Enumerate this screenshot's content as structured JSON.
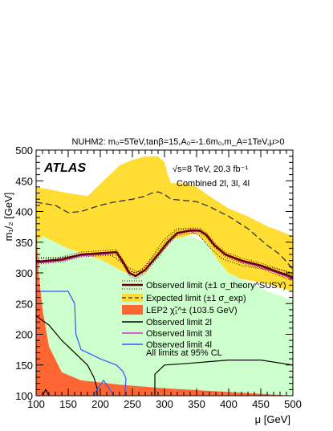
{
  "chart_data": {
    "type": "line",
    "title": "NUHM2: m₀=5TeV,tanβ=15,A₀=-1.6m₀,m_A=1TeV,μ>0",
    "xlabel": "μ [GeV]",
    "ylabel": "m₁/₂ [GeV]",
    "xlim": [
      100,
      500
    ],
    "ylim": [
      100,
      500
    ],
    "xticks": [
      100,
      150,
      200,
      250,
      300,
      350,
      400,
      450,
      500
    ],
    "yticks": [
      100,
      150,
      200,
      250,
      300,
      350,
      400,
      450,
      500
    ],
    "grid": false,
    "legend_position": "center-right",
    "brand": "ATLAS",
    "energy_label": "√s=8 TeV, 20.3 fb⁻¹",
    "combined_label": "Combined 2l, 3l, 4l",
    "footnote": "All limits at 95% CL",
    "colors": {
      "yellow_band": "#ffdd33",
      "green_region": "#ccffcc",
      "lep_fill": "#ff6633",
      "observed": "#660000",
      "l2": "#000000",
      "l3": "#cc33cc",
      "l4": "#3355ff"
    },
    "legend": [
      {
        "label": "Observed limit (±1 σ_theory^SUSY)",
        "style": "observed"
      },
      {
        "label": "Expected limit (±1 σ_exp)",
        "style": "expected"
      },
      {
        "label": "LEP2 χ̃₁^± (103.5 GeV)",
        "style": "lep"
      },
      {
        "label": "Observed limit 2l",
        "style": "l2"
      },
      {
        "label": "Observed limit 3l",
        "style": "l3"
      },
      {
        "label": "Observed limit 4l",
        "style": "l4"
      }
    ],
    "yellow_band": {
      "upper": [
        [
          100,
          440
        ],
        [
          150,
          430
        ],
        [
          180,
          425
        ],
        [
          200,
          445
        ],
        [
          215,
          460
        ],
        [
          230,
          475
        ],
        [
          250,
          484
        ],
        [
          270,
          490
        ],
        [
          290,
          490
        ],
        [
          300,
          480
        ],
        [
          305,
          460
        ],
        [
          310,
          446
        ],
        [
          330,
          446
        ],
        [
          350,
          440
        ],
        [
          370,
          425
        ],
        [
          400,
          405
        ],
        [
          430,
          392
        ],
        [
          460,
          376
        ],
        [
          500,
          360
        ]
      ],
      "lower": [
        [
          100,
          280
        ],
        [
          150,
          291
        ],
        [
          200,
          297
        ],
        [
          230,
          300
        ],
        [
          245,
          287
        ],
        [
          260,
          276
        ],
        [
          280,
          300
        ],
        [
          300,
          330
        ],
        [
          320,
          355
        ],
        [
          350,
          365
        ],
        [
          370,
          340
        ],
        [
          390,
          300
        ],
        [
          420,
          290
        ],
        [
          460,
          282
        ],
        [
          500,
          270
        ]
      ]
    },
    "green_region": {
      "top": [
        [
          100,
          350
        ],
        [
          110,
          360
        ],
        [
          150,
          340
        ],
        [
          200,
          322
        ],
        [
          240,
          300
        ],
        [
          255,
          295
        ],
        [
          270,
          300
        ],
        [
          290,
          330
        ],
        [
          310,
          355
        ],
        [
          340,
          360
        ],
        [
          365,
          350
        ],
        [
          385,
          318
        ],
        [
          400,
          300
        ],
        [
          430,
          285
        ],
        [
          460,
          270
        ],
        [
          500,
          255
        ]
      ],
      "bottom": [
        [
          100,
          100
        ],
        [
          500,
          100
        ]
      ]
    },
    "lep_region": [
      [
        100,
        380
      ],
      [
        100,
        100
      ],
      [
        500,
        100
      ],
      [
        300,
        112
      ],
      [
        230,
        118
      ],
      [
        170,
        125
      ],
      [
        140,
        138
      ],
      [
        120,
        180
      ],
      [
        110,
        240
      ],
      [
        104,
        300
      ],
      [
        101,
        360
      ]
    ],
    "observed": [
      [
        100,
        318
      ],
      [
        140,
        322
      ],
      [
        170,
        330
      ],
      [
        200,
        332
      ],
      [
        225,
        334
      ],
      [
        235,
        318
      ],
      [
        245,
        300
      ],
      [
        255,
        295
      ],
      [
        270,
        305
      ],
      [
        290,
        330
      ],
      [
        305,
        350
      ],
      [
        320,
        365
      ],
      [
        340,
        369
      ],
      [
        355,
        369
      ],
      [
        365,
        362
      ],
      [
        378,
        345
      ],
      [
        395,
        330
      ],
      [
        420,
        320
      ],
      [
        450,
        312
      ],
      [
        470,
        304
      ],
      [
        500,
        293
      ]
    ],
    "observed_plus": [
      [
        100,
        322
      ],
      [
        140,
        326
      ],
      [
        170,
        334
      ],
      [
        200,
        336
      ],
      [
        225,
        338
      ],
      [
        235,
        322
      ],
      [
        245,
        304
      ],
      [
        255,
        300
      ],
      [
        270,
        310
      ],
      [
        290,
        335
      ],
      [
        305,
        355
      ],
      [
        320,
        369
      ],
      [
        340,
        373
      ],
      [
        355,
        373
      ],
      [
        365,
        366
      ],
      [
        378,
        349
      ],
      [
        395,
        334
      ],
      [
        420,
        324
      ],
      [
        450,
        316
      ],
      [
        470,
        309
      ],
      [
        500,
        299
      ]
    ],
    "observed_minus": [
      [
        100,
        314
      ],
      [
        140,
        318
      ],
      [
        170,
        326
      ],
      [
        200,
        328
      ],
      [
        225,
        330
      ],
      [
        235,
        314
      ],
      [
        245,
        296
      ],
      [
        255,
        290
      ],
      [
        270,
        300
      ],
      [
        290,
        325
      ],
      [
        305,
        345
      ],
      [
        320,
        361
      ],
      [
        340,
        365
      ],
      [
        355,
        365
      ],
      [
        365,
        358
      ],
      [
        378,
        341
      ],
      [
        395,
        326
      ],
      [
        420,
        316
      ],
      [
        450,
        308
      ],
      [
        470,
        299
      ],
      [
        500,
        287
      ]
    ],
    "expected": [
      [
        100,
        415
      ],
      [
        130,
        410
      ],
      [
        150,
        398
      ],
      [
        170,
        400
      ],
      [
        200,
        410
      ],
      [
        220,
        415
      ],
      [
        250,
        420
      ],
      [
        270,
        425
      ],
      [
        280,
        430
      ],
      [
        290,
        432
      ],
      [
        300,
        428
      ],
      [
        310,
        420
      ],
      [
        330,
        418
      ],
      [
        350,
        416
      ],
      [
        370,
        408
      ],
      [
        400,
        392
      ],
      [
        430,
        372
      ],
      [
        460,
        345
      ],
      [
        480,
        330
      ],
      [
        500,
        306
      ]
    ],
    "expected_plus": [
      [
        100,
        318
      ],
      [
        140,
        325
      ],
      [
        180,
        330
      ],
      [
        200,
        332
      ],
      [
        225,
        334
      ],
      [
        235,
        320
      ],
      [
        245,
        303
      ],
      [
        255,
        300
      ],
      [
        265,
        305
      ],
      [
        280,
        325
      ],
      [
        300,
        355
      ],
      [
        320,
        372
      ],
      [
        345,
        372
      ],
      [
        365,
        362
      ],
      [
        378,
        342
      ],
      [
        400,
        328
      ],
      [
        430,
        318
      ],
      [
        460,
        310
      ],
      [
        500,
        300
      ]
    ],
    "expected_minus": [
      [
        100,
        325
      ],
      [
        140,
        325
      ],
      [
        170,
        330
      ],
      [
        200,
        333
      ],
      [
        220,
        327
      ],
      [
        235,
        315
      ],
      [
        245,
        308
      ],
      [
        255,
        303
      ],
      [
        265,
        300
      ],
      [
        280,
        315
      ],
      [
        300,
        340
      ],
      [
        320,
        365
      ],
      [
        340,
        368
      ],
      [
        355,
        360
      ],
      [
        370,
        342
      ],
      [
        390,
        323
      ],
      [
        420,
        312
      ],
      [
        460,
        305
      ],
      [
        500,
        297
      ]
    ],
    "l2": [
      [
        [
          100,
          230
        ],
        [
          120,
          215
        ],
        [
          140,
          190
        ],
        [
          160,
          170
        ],
        [
          180,
          150
        ],
        [
          190,
          130
        ],
        [
          195,
          112
        ],
        [
          195,
          100
        ]
      ],
      [
        [
          110,
          100
        ],
        [
          115,
          110
        ],
        [
          120,
          100
        ]
      ],
      [
        [
          285,
          100
        ],
        [
          285,
          135
        ],
        [
          300,
          150
        ],
        [
          330,
          152
        ],
        [
          400,
          158
        ],
        [
          450,
          158
        ],
        [
          500,
          150
        ]
      ]
    ],
    "l3": [
      [
        100,
        316
      ],
      [
        140,
        320
      ],
      [
        170,
        328
      ],
      [
        200,
        330
      ],
      [
        225,
        333
      ],
      [
        235,
        317
      ],
      [
        245,
        299
      ],
      [
        255,
        294
      ],
      [
        270,
        304
      ],
      [
        290,
        330
      ],
      [
        305,
        349
      ],
      [
        320,
        364
      ],
      [
        340,
        368
      ],
      [
        355,
        368
      ],
      [
        365,
        361
      ],
      [
        378,
        344
      ],
      [
        395,
        329
      ],
      [
        420,
        318
      ],
      [
        450,
        310
      ],
      [
        470,
        302
      ],
      [
        500,
        290
      ]
    ],
    "l4": [
      [
        [
          100,
          270
        ],
        [
          150,
          270
        ],
        [
          160,
          250
        ],
        [
          162,
          200
        ],
        [
          170,
          175
        ],
        [
          200,
          160
        ],
        [
          225,
          150
        ],
        [
          235,
          140
        ],
        [
          240,
          128
        ],
        [
          238,
          100
        ]
      ],
      [
        [
          190,
          100
        ],
        [
          195,
          110
        ],
        [
          205,
          125
        ],
        [
          215,
          110
        ],
        [
          220,
          100
        ]
      ]
    ]
  }
}
